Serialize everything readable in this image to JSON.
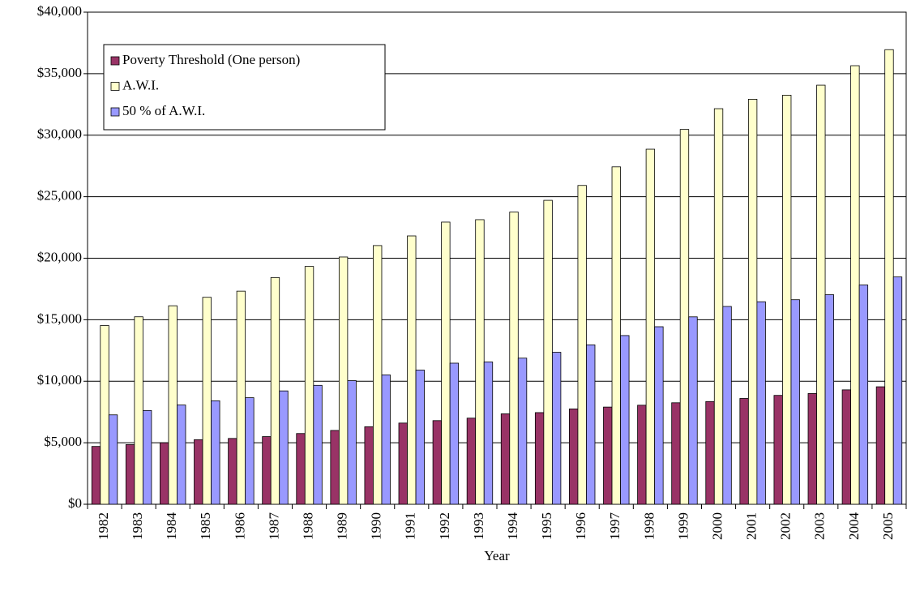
{
  "chart_data": {
    "type": "bar",
    "x_label": "Year",
    "categories": [
      "1982",
      "1983",
      "1984",
      "1985",
      "1986",
      "1987",
      "1988",
      "1989",
      "1990",
      "1991",
      "1992",
      "1993",
      "1994",
      "1995",
      "1996",
      "1997",
      "1998",
      "1999",
      "2000",
      "2001",
      "2002",
      "2003",
      "2004",
      "2005"
    ],
    "series": [
      {
        "name": "Poverty Threshold (One person)",
        "color": "#993366",
        "values": [
          4700,
          4850,
          5000,
          5250,
          5350,
          5500,
          5750,
          6000,
          6300,
          6600,
          6800,
          7000,
          7350,
          7450,
          7750,
          7900,
          8050,
          8250,
          8350,
          8600,
          8850,
          9000,
          9300,
          9550
        ]
      },
      {
        "name": "A.W.I.",
        "color": "#ffffcc",
        "values": [
          14531,
          15239,
          16135,
          16823,
          17322,
          18427,
          19334,
          20100,
          21028,
          21812,
          22935,
          23133,
          23754,
          24706,
          25914,
          27426,
          28861,
          30470,
          32155,
          32922,
          33252,
          34065,
          35649,
          36953
        ]
      },
      {
        "name": "50 % of A.W.I.",
        "color": "#9999ff",
        "values": [
          7266,
          7620,
          8068,
          8412,
          8661,
          9214,
          9667,
          10050,
          10514,
          10906,
          11468,
          11567,
          11877,
          12353,
          12957,
          13713,
          14431,
          15235,
          16078,
          16461,
          16626,
          17033,
          17825,
          18477
        ]
      }
    ],
    "ylim": [
      0,
      40000
    ],
    "yticks": [
      {
        "value": 0,
        "label": "$0"
      },
      {
        "value": 5000,
        "label": "$5,000"
      },
      {
        "value": 10000,
        "label": "$10,000"
      },
      {
        "value": 15000,
        "label": "$15,000"
      },
      {
        "value": 20000,
        "label": "$20,000"
      },
      {
        "value": 25000,
        "label": "$25,000"
      },
      {
        "value": 30000,
        "label": "$30,000"
      },
      {
        "value": 35000,
        "label": "$35,000"
      },
      {
        "value": 40000,
        "label": "$40,000"
      }
    ],
    "grid": true,
    "legend": "upper left"
  }
}
